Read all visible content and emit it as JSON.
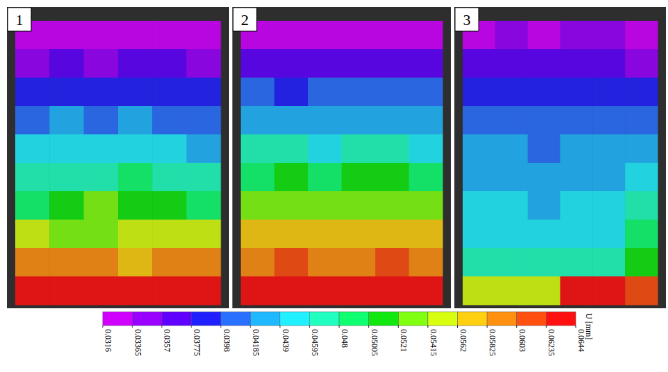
{
  "chart_data": {
    "type": "heatmap",
    "panels": [
      {
        "label": "1",
        "cells": [
          [
            0.033,
            0.0325,
            0.0328,
            0.033,
            0.0326,
            0.0332
          ],
          [
            0.0355,
            0.036,
            0.035,
            0.0362,
            0.0358,
            0.0355
          ],
          [
            0.0385,
            0.038,
            0.039,
            0.0378,
            0.0385,
            0.0392
          ],
          [
            0.0412,
            0.042,
            0.0408,
            0.0425,
            0.0415,
            0.041
          ],
          [
            0.0445,
            0.044,
            0.045,
            0.0442,
            0.0448,
            0.0438
          ],
          [
            0.047,
            0.0478,
            0.0465,
            0.0482,
            0.047,
            0.0475
          ],
          [
            0.05,
            0.051,
            0.0525,
            0.0505,
            0.0515,
            0.0498
          ],
          [
            0.0545,
            0.054,
            0.0535,
            0.0548,
            0.0555,
            0.056
          ],
          [
            0.059,
            0.0585,
            0.0595,
            0.058,
            0.06,
            0.0592
          ],
          [
            0.0635,
            0.064,
            0.063,
            0.0642,
            0.0638,
            0.0625
          ]
        ]
      },
      {
        "label": "2",
        "cells": [
          [
            0.0328,
            0.0332,
            0.033,
            0.0335,
            0.0329,
            0.0333
          ],
          [
            0.0368,
            0.0372,
            0.0365,
            0.037,
            0.0375,
            0.0368
          ],
          [
            0.04,
            0.0395,
            0.0405,
            0.0398,
            0.0402,
            0.0408
          ],
          [
            0.043,
            0.0435,
            0.0428,
            0.0432,
            0.0438,
            0.0426
          ],
          [
            0.046,
            0.0465,
            0.0458,
            0.0462,
            0.0468,
            0.0455
          ],
          [
            0.05,
            0.0505,
            0.0495,
            0.0508,
            0.0502,
            0.0498
          ],
          [
            0.053,
            0.0535,
            0.0528,
            0.054,
            0.0532,
            0.0538
          ],
          [
            0.057,
            0.0575,
            0.0568,
            0.0572,
            0.0578,
            0.0565
          ],
          [
            0.06,
            0.0605,
            0.0598,
            0.0602,
            0.0608,
            0.0595
          ],
          [
            0.063,
            0.0638,
            0.0632,
            0.0636,
            0.0634,
            0.064
          ]
        ]
      },
      {
        "label": "3",
        "cells": [
          [
            0.0335,
            0.034,
            0.0332,
            0.0338,
            0.0342,
            0.0336
          ],
          [
            0.036,
            0.0365,
            0.0358,
            0.0362,
            0.0368,
            0.0355
          ],
          [
            0.0385,
            0.039,
            0.038,
            0.0388,
            0.0392,
            0.0395
          ],
          [
            0.04,
            0.0405,
            0.0398,
            0.0402,
            0.0408,
            0.041
          ],
          [
            0.042,
            0.0425,
            0.0418,
            0.0422,
            0.0428,
            0.043
          ],
          [
            0.043,
            0.0435,
            0.0428,
            0.0432,
            0.0438,
            0.0442
          ],
          [
            0.044,
            0.0445,
            0.0438,
            0.0442,
            0.0448,
            0.046
          ],
          [
            0.0445,
            0.045,
            0.0442,
            0.0448,
            0.0455,
            0.048
          ],
          [
            0.047,
            0.0475,
            0.0468,
            0.0472,
            0.0478,
            0.052
          ],
          [
            0.056,
            0.055,
            0.0558,
            0.064,
            0.0642,
            0.062
          ]
        ]
      }
    ],
    "colorbar": {
      "range": [
        0.0316,
        0.0644
      ],
      "ticks": [
        0.0316,
        0.03365,
        0.0357,
        0.03775,
        0.0398,
        0.04185,
        0.0439,
        0.04595,
        0.048,
        0.05005,
        0.0521,
        0.05415,
        0.0562,
        0.05825,
        0.0603,
        0.06235,
        0.0644
      ],
      "colors": [
        "#d000ff",
        "#9a00ff",
        "#6000ff",
        "#2020ff",
        "#2a70ff",
        "#20b8ff",
        "#20f0ff",
        "#20ffc0",
        "#10ff70",
        "#10e810",
        "#80ff10",
        "#d8ff10",
        "#ffd010",
        "#ff9010",
        "#ff5010",
        "#ff1010"
      ],
      "label": "U [mm]"
    }
  }
}
